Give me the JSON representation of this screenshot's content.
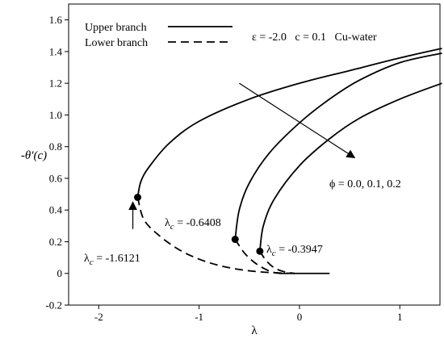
{
  "chart_data": {
    "type": "line",
    "title": "",
    "xlabel": "λ",
    "ylabel": "-θ'(c)",
    "xlim": [
      -2.3,
      1.4
    ],
    "ylim": [
      -0.2,
      1.7
    ],
    "x_ticks": [
      -2,
      -1,
      0,
      1
    ],
    "x_tick_labels": [
      "-2",
      "-1",
      "0",
      "1"
    ],
    "y_ticks": [
      -0.2,
      0,
      0.2,
      0.4,
      0.6,
      0.8,
      1.0,
      1.2,
      1.4,
      1.6
    ],
    "y_tick_labels": [
      "-0.2",
      "0",
      "0.2",
      "0.4",
      "0.6",
      "0.8",
      "1.0",
      "1.2",
      "1.4",
      "1.6"
    ],
    "legend": {
      "placement": "top-left",
      "entries": [
        {
          "label": "Upper branch",
          "style": "solid"
        },
        {
          "label": "Lower branch",
          "style": "dashed"
        }
      ]
    },
    "parameter_text": "ε = -2.0   c = 0.1   Cu-water",
    "series": [
      {
        "style": "solid",
        "phi": 0.0,
        "points": [
          [
            -1.6121,
            0.48
          ],
          [
            -1.58,
            0.58
          ],
          [
            -1.5,
            0.67
          ],
          [
            -1.3,
            0.82
          ],
          [
            -1.0,
            0.96
          ],
          [
            -0.5,
            1.1
          ],
          [
            0.0,
            1.2
          ],
          [
            0.5,
            1.28
          ],
          [
            1.0,
            1.36
          ],
          [
            1.42,
            1.42
          ]
        ]
      },
      {
        "style": "dashed",
        "phi": 0.0,
        "points": [
          [
            -1.6121,
            0.48
          ],
          [
            -1.55,
            0.34
          ],
          [
            -1.4,
            0.24
          ],
          [
            -1.2,
            0.15
          ],
          [
            -1.0,
            0.09
          ],
          [
            -0.8,
            0.05
          ],
          [
            -0.6,
            0.025
          ],
          [
            -0.4,
            0.01
          ],
          [
            -0.2,
            0.003
          ],
          [
            -0.05,
            0.0
          ]
        ]
      },
      {
        "style": "solid",
        "phi": 0.1,
        "points": [
          [
            -0.6408,
            0.215
          ],
          [
            -0.6,
            0.4
          ],
          [
            -0.5,
            0.57
          ],
          [
            -0.3,
            0.76
          ],
          [
            0.0,
            0.95
          ],
          [
            0.3,
            1.1
          ],
          [
            0.6,
            1.22
          ],
          [
            1.0,
            1.33
          ],
          [
            1.42,
            1.39
          ]
        ]
      },
      {
        "style": "dashed",
        "phi": 0.1,
        "points": [
          [
            -0.6408,
            0.215
          ],
          [
            -0.55,
            0.13
          ],
          [
            -0.45,
            0.07
          ],
          [
            -0.35,
            0.03
          ],
          [
            -0.25,
            0.005
          ],
          [
            -0.15,
            0.0
          ]
        ]
      },
      {
        "style": "solid",
        "phi": 0.2,
        "points": [
          [
            -0.3947,
            0.14
          ],
          [
            -0.36,
            0.3
          ],
          [
            -0.25,
            0.47
          ],
          [
            0.0,
            0.68
          ],
          [
            0.3,
            0.85
          ],
          [
            0.6,
            0.98
          ],
          [
            1.0,
            1.1
          ],
          [
            1.42,
            1.2
          ]
        ]
      },
      {
        "style": "dashed",
        "phi": 0.2,
        "points": [
          [
            -0.3947,
            0.14
          ],
          [
            -0.33,
            0.08
          ],
          [
            -0.25,
            0.035
          ],
          [
            -0.15,
            0.01
          ],
          [
            -0.05,
            0.0
          ]
        ]
      },
      {
        "style": "solid",
        "phi": null,
        "points": [
          [
            -0.2,
            0.0
          ],
          [
            0.3,
            0.0
          ]
        ]
      }
    ],
    "critical_points": [
      {
        "x": -1.6121,
        "y": 0.48,
        "label": "λ",
        "subscript": "c",
        "value_text": " = -1.6121"
      },
      {
        "x": -0.6408,
        "y": 0.215,
        "label": "λ",
        "subscript": "c",
        "value_text": " = -0.6408"
      },
      {
        "x": -0.3947,
        "y": 0.14,
        "label": "λ",
        "subscript": "c",
        "value_text": " = -0.3947"
      }
    ],
    "annotations": {
      "phi_text": "ϕ = 0.0, 0.1, 0.2",
      "phi_arrow": {
        "from": [
          -0.6,
          1.2
        ],
        "to": [
          0.55,
          0.73
        ]
      },
      "lc_arrow": {
        "from": [
          -1.66,
          0.28
        ],
        "to": [
          -1.66,
          0.45
        ]
      }
    }
  }
}
